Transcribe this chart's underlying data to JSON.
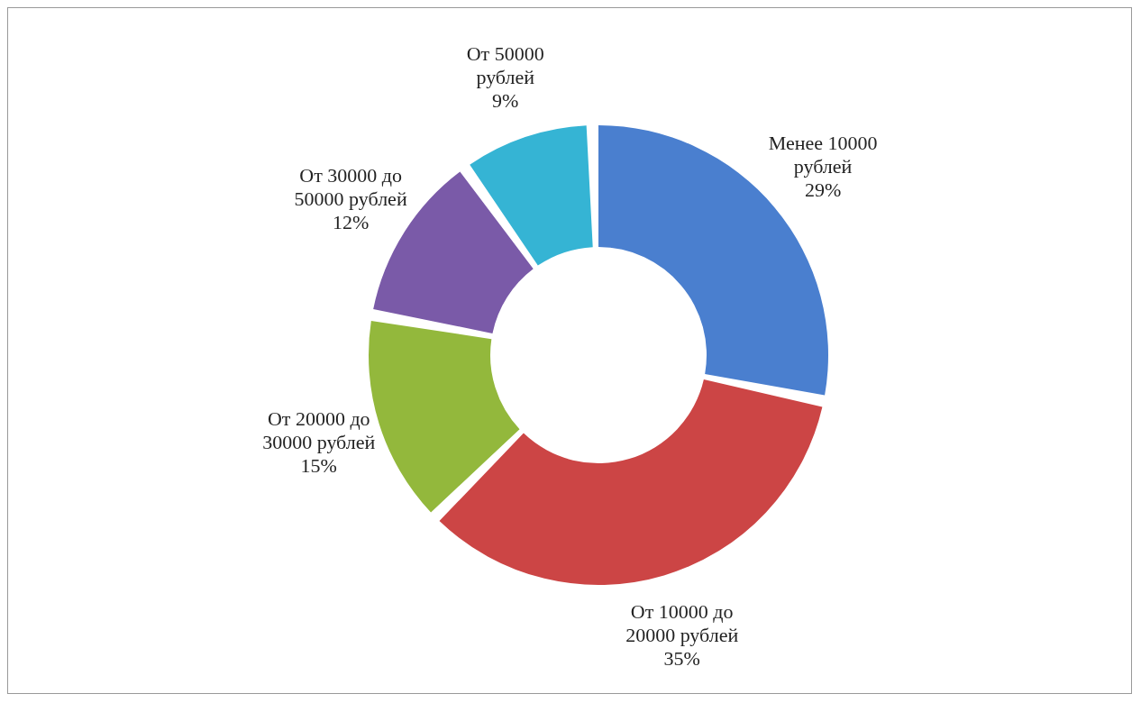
{
  "chart_data": {
    "type": "donut",
    "categories": [
      "Менее 10000 рублей",
      "От 10000 до 20000 рублей",
      "От 20000 до 30000 рублей",
      "От 30000 до 50000 рублей",
      "От 50000 рублей"
    ],
    "values": [
      29,
      35,
      15,
      12,
      9
    ],
    "value_labels": [
      "29%",
      "35%",
      "15%",
      "12%",
      "9%"
    ],
    "colors": [
      "#4a7fcf",
      "#cc4545",
      "#93b83c",
      "#7a5aa8",
      "#35b4d4"
    ],
    "legend": false
  }
}
